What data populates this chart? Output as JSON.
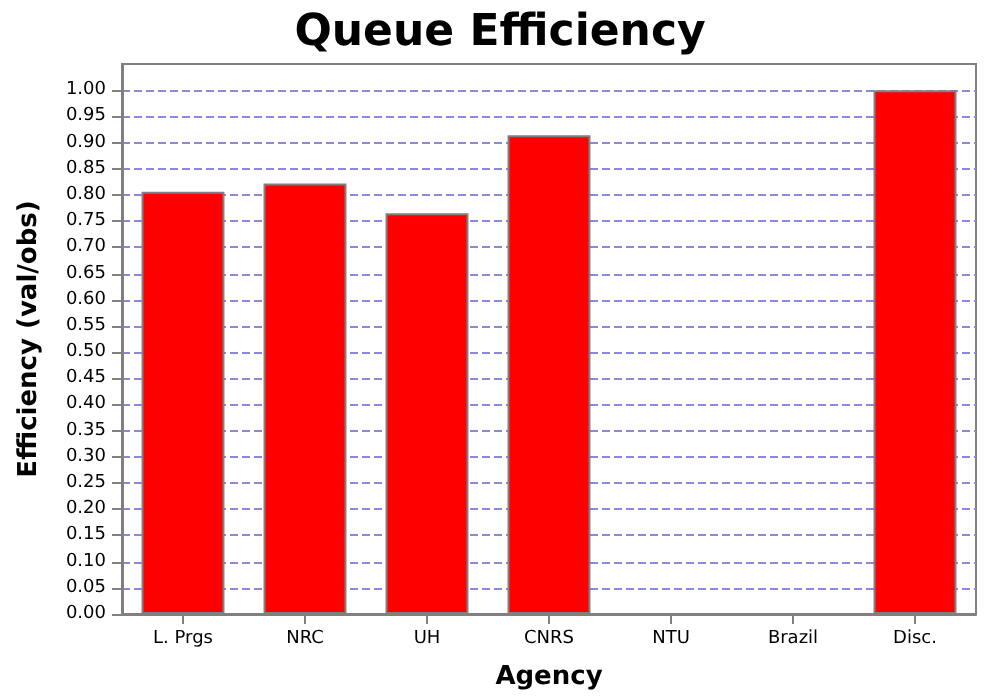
{
  "chart_data": {
    "type": "bar",
    "title": "Queue Efficiency",
    "xlabel": "Agency",
    "ylabel": "Efficiency (val/obs)",
    "categories": [
      "L. Prgs",
      "NRC",
      "UH",
      "CNRS",
      "NTU",
      "Brazil",
      "Disc."
    ],
    "values": [
      0.806,
      0.822,
      0.765,
      0.914,
      0,
      0,
      1.0
    ],
    "color": "#ff0000",
    "ylim": [
      0,
      1.05
    ],
    "yticks": [
      {
        "value": 0,
        "label": "0.00"
      },
      {
        "value": 0.05,
        "label": "0.05"
      },
      {
        "value": 0.1,
        "label": "0.10"
      },
      {
        "value": 0.15,
        "label": "0.15"
      },
      {
        "value": 0.2,
        "label": "0.20"
      },
      {
        "value": 0.25,
        "label": "0.25"
      },
      {
        "value": 0.3,
        "label": "0.30"
      },
      {
        "value": 0.35,
        "label": "0.35"
      },
      {
        "value": 0.4,
        "label": "0.40"
      },
      {
        "value": 0.45,
        "label": "0.45"
      },
      {
        "value": 0.5,
        "label": "0.50"
      },
      {
        "value": 0.55,
        "label": "0.55"
      },
      {
        "value": 0.6,
        "label": "0.60"
      },
      {
        "value": 0.65,
        "label": "0.65"
      },
      {
        "value": 0.7,
        "label": "0.70"
      },
      {
        "value": 0.75,
        "label": "0.75"
      },
      {
        "value": 0.8,
        "label": "0.80"
      },
      {
        "value": 0.85,
        "label": "0.85"
      },
      {
        "value": 0.9,
        "label": "0.90"
      },
      {
        "value": 0.95,
        "label": "0.95"
      },
      {
        "value": 1.0,
        "label": "1.00"
      }
    ],
    "grid": "y"
  }
}
